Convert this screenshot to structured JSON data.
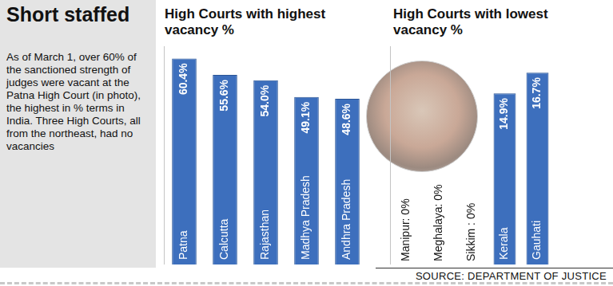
{
  "panel": {
    "title": "Short staffed",
    "text": "As of March 1, over 60% of the sanctioned strength of judges were vacant at the Patna High Court (in photo), the highest in % terms in India. Three High Courts, all from the northeast, had no vacancies"
  },
  "source": "SOURCE: DEPARTMENT OF JUSTICE",
  "chart_data": [
    {
      "type": "bar",
      "title": "High Courts with highest vacancy %",
      "categories": [
        "Patna",
        "Calcutta",
        "Rajasthan",
        "Madhya Pradesh",
        "Andhra Pradesh"
      ],
      "values": [
        60.4,
        55.6,
        54.0,
        49.1,
        48.6
      ],
      "value_labels": [
        "60.4%",
        "55.6%",
        "54.0%",
        "49.1%",
        "48.6%"
      ],
      "data_labels": true,
      "color": "#3d6fbd",
      "ylim": [
        0,
        64
      ],
      "grid": false,
      "tick_labels": false
    },
    {
      "type": "bar",
      "title": "High Courts with lowest vacancy %",
      "categories": [
        "Manipur",
        "Meghalaya",
        "Sikkim",
        "Kerala",
        "Gauhati"
      ],
      "values": [
        0,
        0,
        0,
        14.9,
        16.7
      ],
      "value_labels": [
        "Manipur: 0%",
        "Meghalaya: 0%",
        "Sikkim : 0%",
        "14.9%",
        "16.7%"
      ],
      "data_labels": true,
      "color": "#3d6fbd",
      "ylim": [
        0,
        19
      ],
      "grid": false,
      "tick_labels": false
    }
  ]
}
